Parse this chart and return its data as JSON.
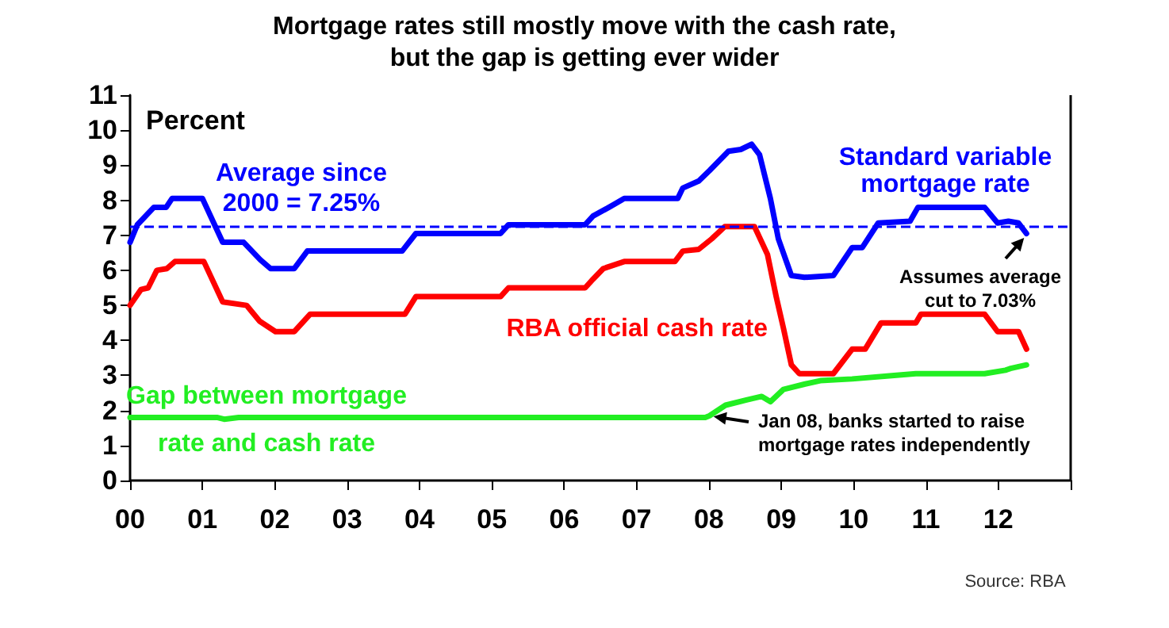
{
  "chart_data": {
    "type": "line",
    "title": "Mortgage rates still mostly move with the cash rate,\nbut the gap is getting ever wider",
    "ylabel": "Percent",
    "xlim": [
      2000,
      2013
    ],
    "xticks": [
      {
        "value": 2000,
        "label": "00"
      },
      {
        "value": 2001,
        "label": "01"
      },
      {
        "value": 2002,
        "label": "02"
      },
      {
        "value": 2003,
        "label": "03"
      },
      {
        "value": 2004,
        "label": "04"
      },
      {
        "value": 2005,
        "label": "05"
      },
      {
        "value": 2006,
        "label": "06"
      },
      {
        "value": 2007,
        "label": "07"
      },
      {
        "value": 2008,
        "label": "08"
      },
      {
        "value": 2009,
        "label": "09"
      },
      {
        "value": 2010,
        "label": "10"
      },
      {
        "value": 2011,
        "label": "11"
      },
      {
        "value": 2012,
        "label": "12"
      },
      {
        "value": 2013,
        "label": null
      }
    ],
    "ylim": [
      0,
      11
    ],
    "yticks": [
      0,
      1,
      2,
      3,
      4,
      5,
      6,
      7,
      8,
      9,
      10,
      11
    ],
    "grid": false,
    "legend": false,
    "marker": "none",
    "series": [
      {
        "name": "Standard variable\nmortgage rate",
        "color": "#0000ff",
        "x": [
          2000.0,
          2000.1,
          2000.33,
          2000.5,
          2000.58,
          2001.0,
          2001.28,
          2001.57,
          2001.8,
          2001.94,
          2002.27,
          2002.45,
          2003.76,
          2003.95,
          2005.12,
          2005.23,
          2006.29,
          2006.4,
          2006.62,
          2006.83,
          2007.57,
          2007.64,
          2007.86,
          2008.01,
          2008.27,
          2008.44,
          2008.59,
          2008.7,
          2008.85,
          2008.96,
          2009.14,
          2009.32,
          2009.72,
          2009.98,
          2010.12,
          2010.34,
          2010.78,
          2010.89,
          2011.81,
          2011.99,
          2012.14,
          2012.28,
          2012.39
        ],
        "values": [
          6.8,
          7.3,
          7.8,
          7.8,
          8.05,
          8.05,
          6.8,
          6.8,
          6.3,
          6.05,
          6.05,
          6.55,
          6.55,
          7.05,
          7.05,
          7.3,
          7.3,
          7.55,
          7.8,
          8.05,
          8.05,
          8.35,
          8.55,
          8.85,
          9.4,
          9.45,
          9.6,
          9.3,
          8.05,
          6.9,
          5.85,
          5.8,
          5.85,
          6.65,
          6.65,
          7.35,
          7.4,
          7.8,
          7.8,
          7.35,
          7.4,
          7.35,
          7.05
        ]
      },
      {
        "name": "RBA official cash rate",
        "color": "#ff0000",
        "x": [
          2000.0,
          2000.15,
          2000.25,
          2000.37,
          2000.51,
          2000.62,
          2001.02,
          2001.28,
          2001.61,
          2001.79,
          2002.01,
          2002.27,
          2002.49,
          2003.8,
          2003.95,
          2005.12,
          2005.23,
          2006.29,
          2006.4,
          2006.54,
          2006.83,
          2007.53,
          2007.64,
          2007.86,
          2008.04,
          2008.22,
          2008.63,
          2008.81,
          2008.93,
          2009.03,
          2009.14,
          2009.25,
          2009.72,
          2009.98,
          2010.16,
          2010.38,
          2010.86,
          2010.93,
          2011.81,
          2011.99,
          2012.28,
          2012.39
        ],
        "values": [
          5.0,
          5.45,
          5.5,
          6.0,
          6.05,
          6.25,
          6.25,
          5.1,
          5.0,
          4.55,
          4.25,
          4.25,
          4.75,
          4.75,
          5.25,
          5.25,
          5.5,
          5.5,
          5.75,
          6.05,
          6.25,
          6.25,
          6.55,
          6.6,
          6.9,
          7.25,
          7.25,
          6.45,
          5.25,
          4.35,
          3.3,
          3.05,
          3.05,
          3.75,
          3.75,
          4.5,
          4.5,
          4.75,
          4.75,
          4.25,
          4.25,
          3.75
        ]
      },
      {
        "name": "Gap between mortgage\nrate and cash rate",
        "color": "#22ee22",
        "x": [
          2000.0,
          2001.2,
          2001.3,
          2001.5,
          2003.0,
          2005.0,
          2007.95,
          2008.01,
          2008.23,
          2008.52,
          2008.73,
          2008.85,
          2009.03,
          2009.32,
          2009.54,
          2009.98,
          2010.56,
          2010.86,
          2011.81,
          2012.1,
          2012.17,
          2012.39
        ],
        "values": [
          1.8,
          1.8,
          1.75,
          1.8,
          1.8,
          1.8,
          1.8,
          1.85,
          2.15,
          2.3,
          2.4,
          2.25,
          2.6,
          2.75,
          2.85,
          2.9,
          3.0,
          3.05,
          3.05,
          3.15,
          3.2,
          3.3
        ]
      }
    ],
    "ref_lines": [
      {
        "axis": "y",
        "value": 7.25,
        "label": "Average since\n2000 = 7.25%",
        "color": "#0000ff",
        "line_style": "dashed"
      }
    ],
    "annotations": [
      {
        "text": "Assumes average\ncut to 7.03%",
        "x": 2012.4,
        "y": 7.03
      },
      {
        "text": "Jan 08, banks started to raise\nmortgage rates independently",
        "x": 2008.0,
        "y": 1.85
      },
      "Source: RBA"
    ]
  }
}
